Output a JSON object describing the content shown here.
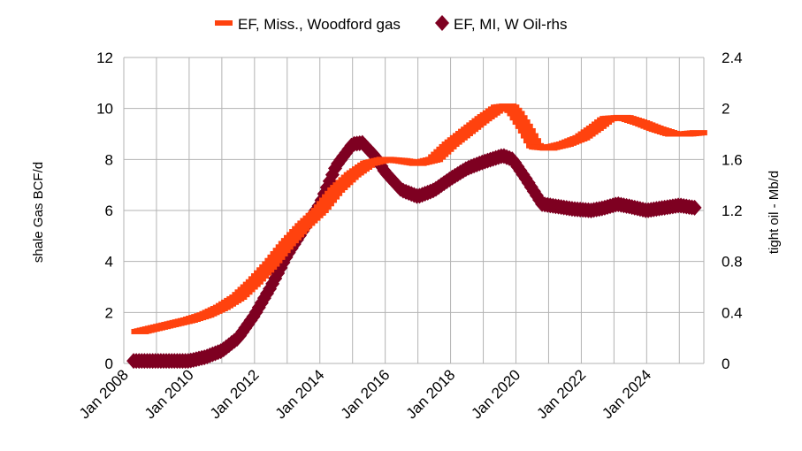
{
  "chart_data": {
    "type": "line",
    "title": "",
    "xlabel": "",
    "ylabel": "shale Gas BCF/d",
    "y2label": "tight oil - Mb/d",
    "xlim": [
      2008,
      2025.75
    ],
    "ylim": [
      0,
      12
    ],
    "y2lim": [
      0,
      2.4
    ],
    "grid": true,
    "legend_position": "top",
    "x_ticks": [
      {
        "value": 2008,
        "label": "Jan 2008"
      },
      {
        "value": 2010,
        "label": "Jan 2010"
      },
      {
        "value": 2012,
        "label": "Jan 2012"
      },
      {
        "value": 2014,
        "label": "Jan 2014"
      },
      {
        "value": 2016,
        "label": "Jan 2016"
      },
      {
        "value": 2018,
        "label": "Jan 2018"
      },
      {
        "value": 2020,
        "label": "Jan 2020"
      },
      {
        "value": 2022,
        "label": "Jan 2022"
      },
      {
        "value": 2024,
        "label": "Jan 2024"
      }
    ],
    "y_ticks": [
      "0",
      "2",
      "4",
      "6",
      "8",
      "10",
      "12"
    ],
    "y2_ticks": [
      "0",
      "0.4",
      "0.8",
      "1.2",
      "1.6",
      "2",
      "2.4"
    ],
    "series": [
      {
        "name": "EF, Miss., Woodford gas",
        "axis": "left",
        "color": "#FF420E",
        "marker": "dash",
        "points": [
          [
            2008.5,
            1.25
          ],
          [
            2009,
            1.4
          ],
          [
            2010,
            1.7
          ],
          [
            2010.5,
            1.9
          ],
          [
            2011,
            2.2
          ],
          [
            2011.5,
            2.6
          ],
          [
            2012,
            3.2
          ],
          [
            2012.5,
            3.9
          ],
          [
            2013,
            4.7
          ],
          [
            2013.5,
            5.4
          ],
          [
            2014,
            6.0
          ],
          [
            2014.5,
            6.8
          ],
          [
            2015,
            7.4
          ],
          [
            2015.5,
            7.85
          ],
          [
            2016,
            8.0
          ],
          [
            2016.5,
            7.95
          ],
          [
            2017,
            7.85
          ],
          [
            2017.5,
            8.0
          ],
          [
            2018,
            8.6
          ],
          [
            2018.5,
            9.1
          ],
          [
            2019,
            9.6
          ],
          [
            2019.5,
            10.05
          ],
          [
            2019.8,
            10.1
          ],
          [
            2020,
            9.8
          ],
          [
            2020.3,
            9.2
          ],
          [
            2020.6,
            8.5
          ],
          [
            2021,
            8.45
          ],
          [
            2021.5,
            8.6
          ],
          [
            2022,
            8.85
          ],
          [
            2022.5,
            9.3
          ],
          [
            2022.8,
            9.6
          ],
          [
            2023.3,
            9.65
          ],
          [
            2023.8,
            9.45
          ],
          [
            2024.3,
            9.2
          ],
          [
            2024.8,
            9.0
          ],
          [
            2025.2,
            9.0
          ],
          [
            2025.6,
            9.05
          ]
        ]
      },
      {
        "name": "EF, MI, W Oil-rhs",
        "axis": "right",
        "color": "#7E0021",
        "marker": "diamond",
        "points": [
          [
            2008.3,
            0.02
          ],
          [
            2009,
            0.02
          ],
          [
            2010,
            0.02
          ],
          [
            2010.5,
            0.05
          ],
          [
            2011,
            0.1
          ],
          [
            2011.5,
            0.2
          ],
          [
            2012,
            0.38
          ],
          [
            2012.5,
            0.6
          ],
          [
            2013,
            0.85
          ],
          [
            2013.5,
            1.05
          ],
          [
            2014,
            1.25
          ],
          [
            2014.5,
            1.55
          ],
          [
            2015,
            1.72
          ],
          [
            2015.3,
            1.73
          ],
          [
            2015.7,
            1.62
          ],
          [
            2016,
            1.5
          ],
          [
            2016.5,
            1.36
          ],
          [
            2017,
            1.31
          ],
          [
            2017.5,
            1.36
          ],
          [
            2018,
            1.45
          ],
          [
            2018.5,
            1.53
          ],
          [
            2019,
            1.58
          ],
          [
            2019.6,
            1.63
          ],
          [
            2019.9,
            1.6
          ],
          [
            2020.3,
            1.45
          ],
          [
            2020.6,
            1.33
          ],
          [
            2020.8,
            1.25
          ],
          [
            2021.3,
            1.23
          ],
          [
            2021.8,
            1.21
          ],
          [
            2022.3,
            1.2
          ],
          [
            2022.7,
            1.22
          ],
          [
            2023.1,
            1.25
          ],
          [
            2023.5,
            1.23
          ],
          [
            2024,
            1.2
          ],
          [
            2024.5,
            1.22
          ],
          [
            2025,
            1.24
          ],
          [
            2025.5,
            1.22
          ]
        ]
      }
    ]
  }
}
